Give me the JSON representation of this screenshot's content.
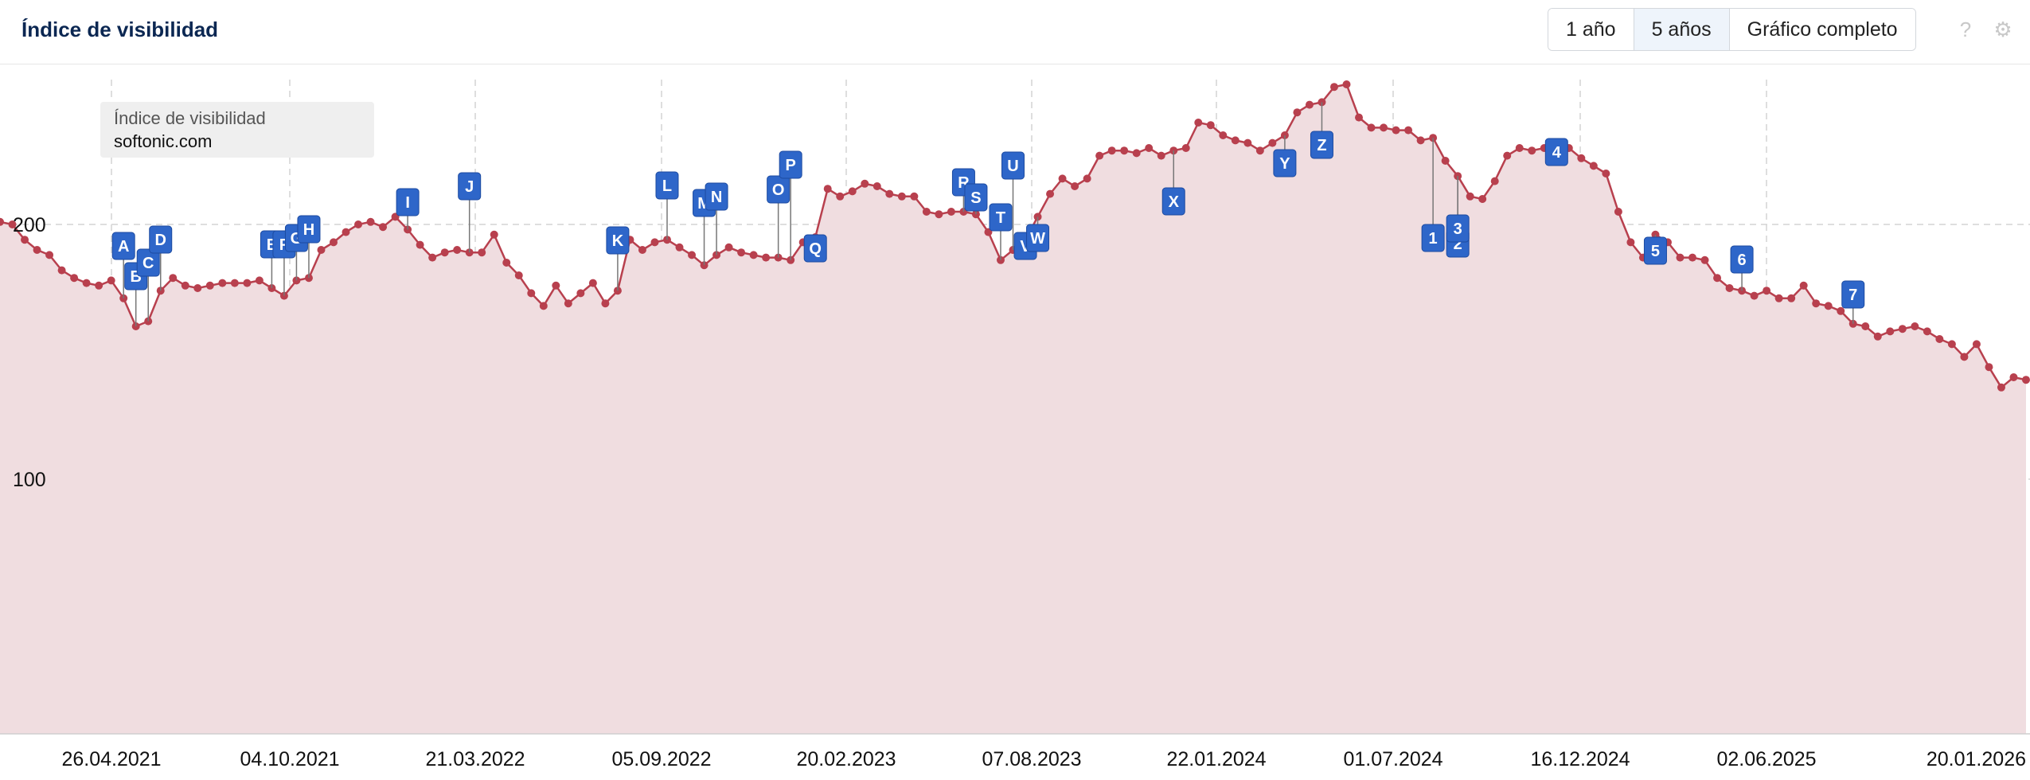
{
  "header": {
    "title": "Índice de visibilidad",
    "buttons": [
      "1 año",
      "5 años",
      "Gráfico completo"
    ],
    "active_button": "5 años",
    "help_icon": "question-icon",
    "settings_icon": "gear-icon"
  },
  "legend": {
    "title": "Índice de visibilidad",
    "domain": "softonic.com"
  },
  "colors": {
    "line": "#b8404e",
    "area": "#f0dde0",
    "marker": "#2e66c9",
    "grid": "#d4d4d4",
    "title": "#0b2752"
  },
  "chart_data": {
    "type": "area",
    "ylim": [
      0,
      262
    ],
    "yticks": [
      100,
      200
    ],
    "grid": true,
    "x_tick_labels": [
      "26.04.2021",
      "04.10.2021",
      "21.03.2022",
      "05.09.2022",
      "20.02.2023",
      "07.08.2023",
      "22.01.2024",
      "01.07.2024",
      "16.12.2024",
      "02.06.2025",
      "20.01.2026"
    ],
    "series": [
      {
        "values": [
          201,
          200,
          194,
          190,
          188,
          182,
          179,
          177,
          176,
          178,
          171,
          160,
          162,
          174,
          179,
          176,
          175,
          176,
          177,
          177,
          177,
          178,
          175,
          172,
          178,
          179,
          190,
          193,
          197,
          200,
          201,
          199,
          203,
          198,
          192,
          187,
          189,
          190,
          189,
          189,
          196,
          185,
          180,
          173,
          168,
          176,
          169,
          173,
          177,
          169,
          174,
          194,
          190,
          193,
          194,
          191,
          188,
          184,
          188,
          191,
          189,
          188,
          187,
          187,
          186,
          193,
          195,
          214,
          211,
          213,
          216,
          215,
          212,
          211,
          211,
          205,
          204,
          205,
          205,
          204,
          197,
          186,
          190,
          194,
          203,
          212,
          218,
          215,
          218,
          227,
          229,
          229,
          228,
          230,
          227,
          229,
          230,
          240,
          239,
          235,
          233,
          232,
          229,
          232,
          235,
          244,
          247,
          248,
          254,
          255,
          242,
          238,
          238,
          237,
          237,
          233,
          234,
          225,
          219,
          211,
          210,
          217,
          227,
          230,
          229,
          230,
          229,
          230,
          226,
          223,
          220,
          205,
          193,
          187,
          196,
          193,
          187,
          187,
          186,
          179,
          175,
          174,
          172,
          174,
          171,
          171,
          176,
          169,
          168,
          166,
          161,
          160,
          156,
          158,
          159,
          160,
          158,
          155,
          153,
          148,
          153,
          144,
          136,
          140,
          139
        ]
      }
    ],
    "annotations": [
      "A",
      "B",
      "C",
      "D",
      "E",
      "F",
      "G",
      "H",
      "I",
      "J",
      "K",
      "L",
      "M",
      "N",
      "O",
      "P",
      "Q",
      "R",
      "S",
      "T",
      "U",
      "V",
      "W",
      "X",
      "Y",
      "Z",
      "1",
      "2",
      "3",
      "4",
      "5",
      "6",
      "7"
    ]
  }
}
